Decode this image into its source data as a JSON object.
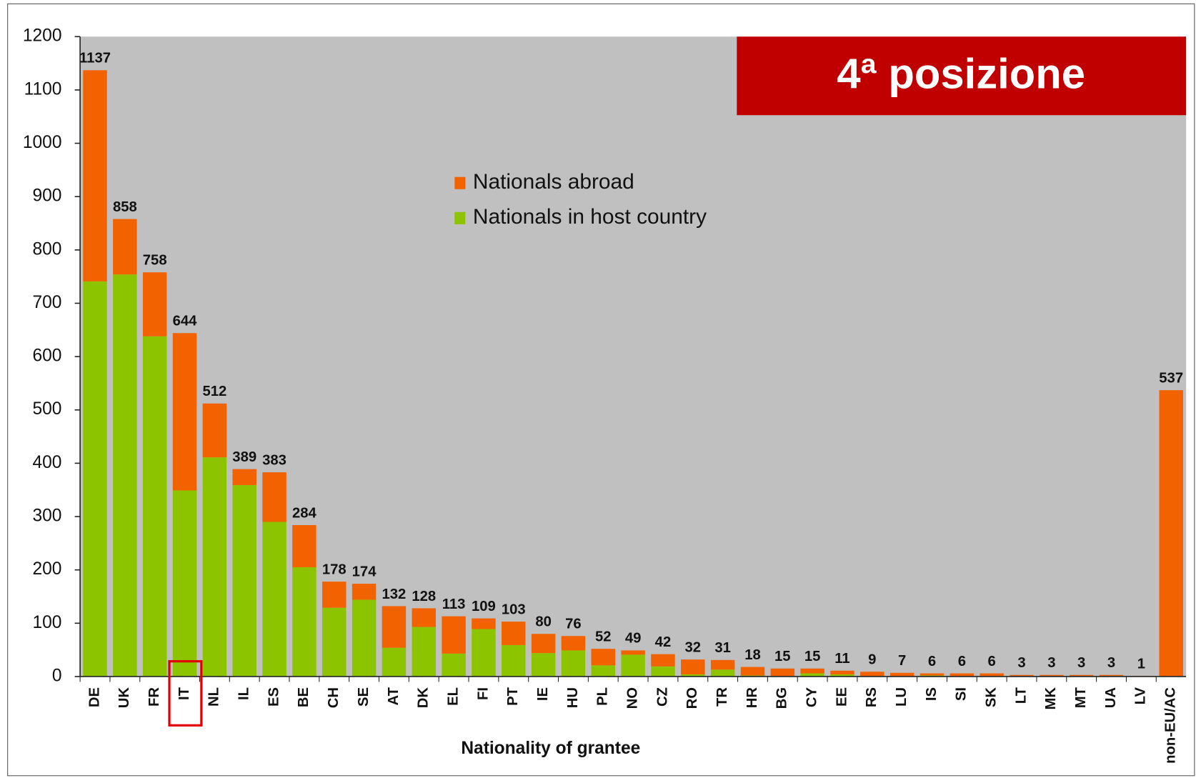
{
  "chart_data": {
    "type": "stacked_bar",
    "annotation": "4ª posizione",
    "x_label": "Nationality of grantee",
    "categories": [
      "DE",
      "UK",
      "FR",
      "IT",
      "NL",
      "IL",
      "ES",
      "BE",
      "CH",
      "SE",
      "AT",
      "DK",
      "EL",
      "FI",
      "PT",
      "IE",
      "HU",
      "PL",
      "NO",
      "CZ",
      "RO",
      "TR",
      "HR",
      "BG",
      "CY",
      "EE",
      "RS",
      "LU",
      "IS",
      "SI",
      "SK",
      "LT",
      "MK",
      "MT",
      "UA",
      "LV",
      "non-EU/AC"
    ],
    "series": [
      {
        "name": "Nationals in host country",
        "color": "#8cc400",
        "values": [
          741,
          754,
          638,
          349,
          411,
          359,
          290,
          205,
          129,
          144,
          54,
          93,
          43,
          89,
          59,
          44,
          49,
          21,
          41,
          19,
          4,
          13,
          2,
          1,
          6,
          4,
          1,
          1,
          2,
          1,
          1,
          1,
          1,
          1,
          1,
          0,
          0
        ]
      },
      {
        "name": "Nationals abroad",
        "color": "#f26200",
        "values": [
          396,
          104,
          120,
          295,
          101,
          30,
          93,
          79,
          49,
          30,
          78,
          35,
          70,
          20,
          44,
          36,
          27,
          31,
          8,
          23,
          28,
          18,
          16,
          14,
          9,
          7,
          8,
          6,
          4,
          5,
          5,
          2,
          2,
          2,
          2,
          1,
          537
        ]
      }
    ],
    "totals": [
      1137,
      858,
      758,
      644,
      512,
      389,
      383,
      284,
      178,
      174,
      132,
      128,
      113,
      109,
      103,
      80,
      76,
      52,
      49,
      42,
      32,
      31,
      18,
      15,
      15,
      11,
      9,
      7,
      6,
      6,
      6,
      3,
      3,
      3,
      3,
      1,
      537
    ],
    "ylim": [
      0,
      1200
    ],
    "yticks": [
      0,
      100,
      200,
      300,
      400,
      500,
      600,
      700,
      800,
      900,
      1000,
      1100,
      1200
    ],
    "plot_background": "#c0c0c0"
  }
}
